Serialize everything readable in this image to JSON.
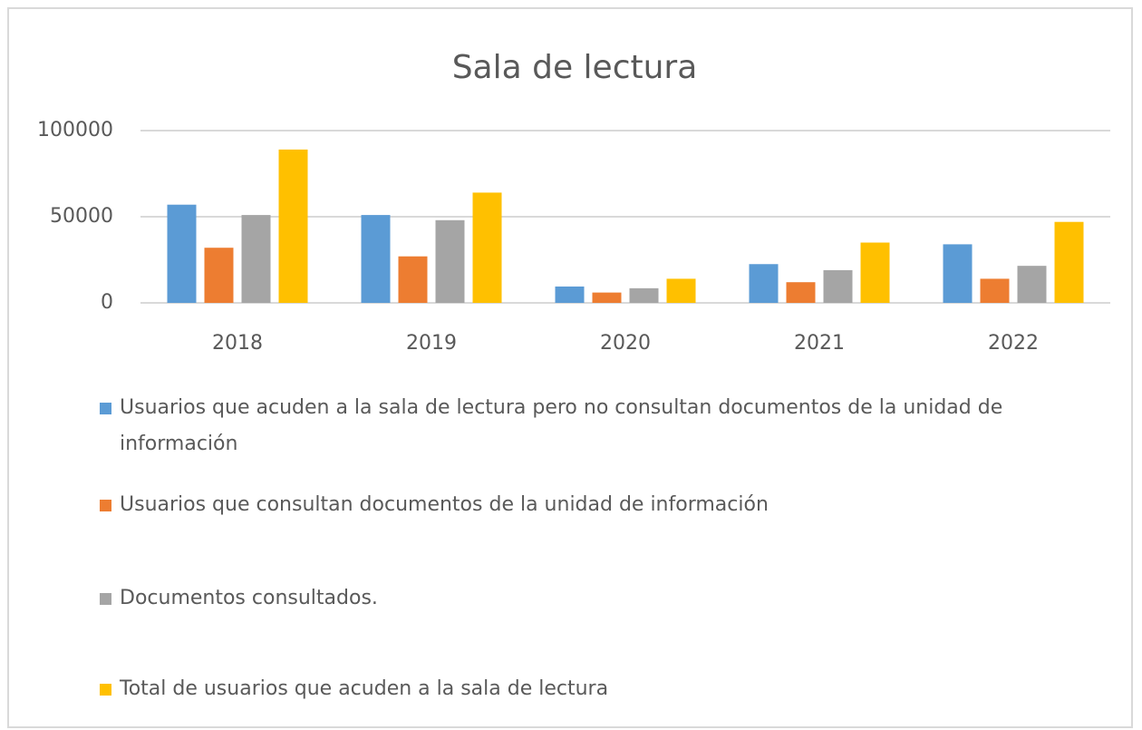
{
  "chart_data": {
    "type": "bar",
    "title": "Sala de lectura",
    "categories": [
      "2018",
      "2019",
      "2020",
      "2021",
      "2022"
    ],
    "series": [
      {
        "name": "Usuarios que acuden a la sala de lectura pero no consultan documentos de la unidad de información",
        "color": "#5b9bd5",
        "values": [
          57000,
          51000,
          9500,
          22500,
          34000
        ]
      },
      {
        "name": "Usuarios que consultan documentos de la unidad de información",
        "color": "#ed7d31",
        "values": [
          32000,
          27000,
          6000,
          12000,
          14000
        ]
      },
      {
        "name": "Documentos consultados.",
        "color": "#a5a5a5",
        "values": [
          51000,
          48000,
          8500,
          19000,
          21500
        ]
      },
      {
        "name": "Total de usuarios que acuden a la sala de lectura",
        "color": "#ffc000",
        "values": [
          89000,
          64000,
          14000,
          35000,
          47000
        ]
      }
    ],
    "ylim": [
      0,
      100000
    ],
    "yticks": [
      0,
      50000,
      100000
    ],
    "grid": true,
    "legend": "bottom"
  }
}
